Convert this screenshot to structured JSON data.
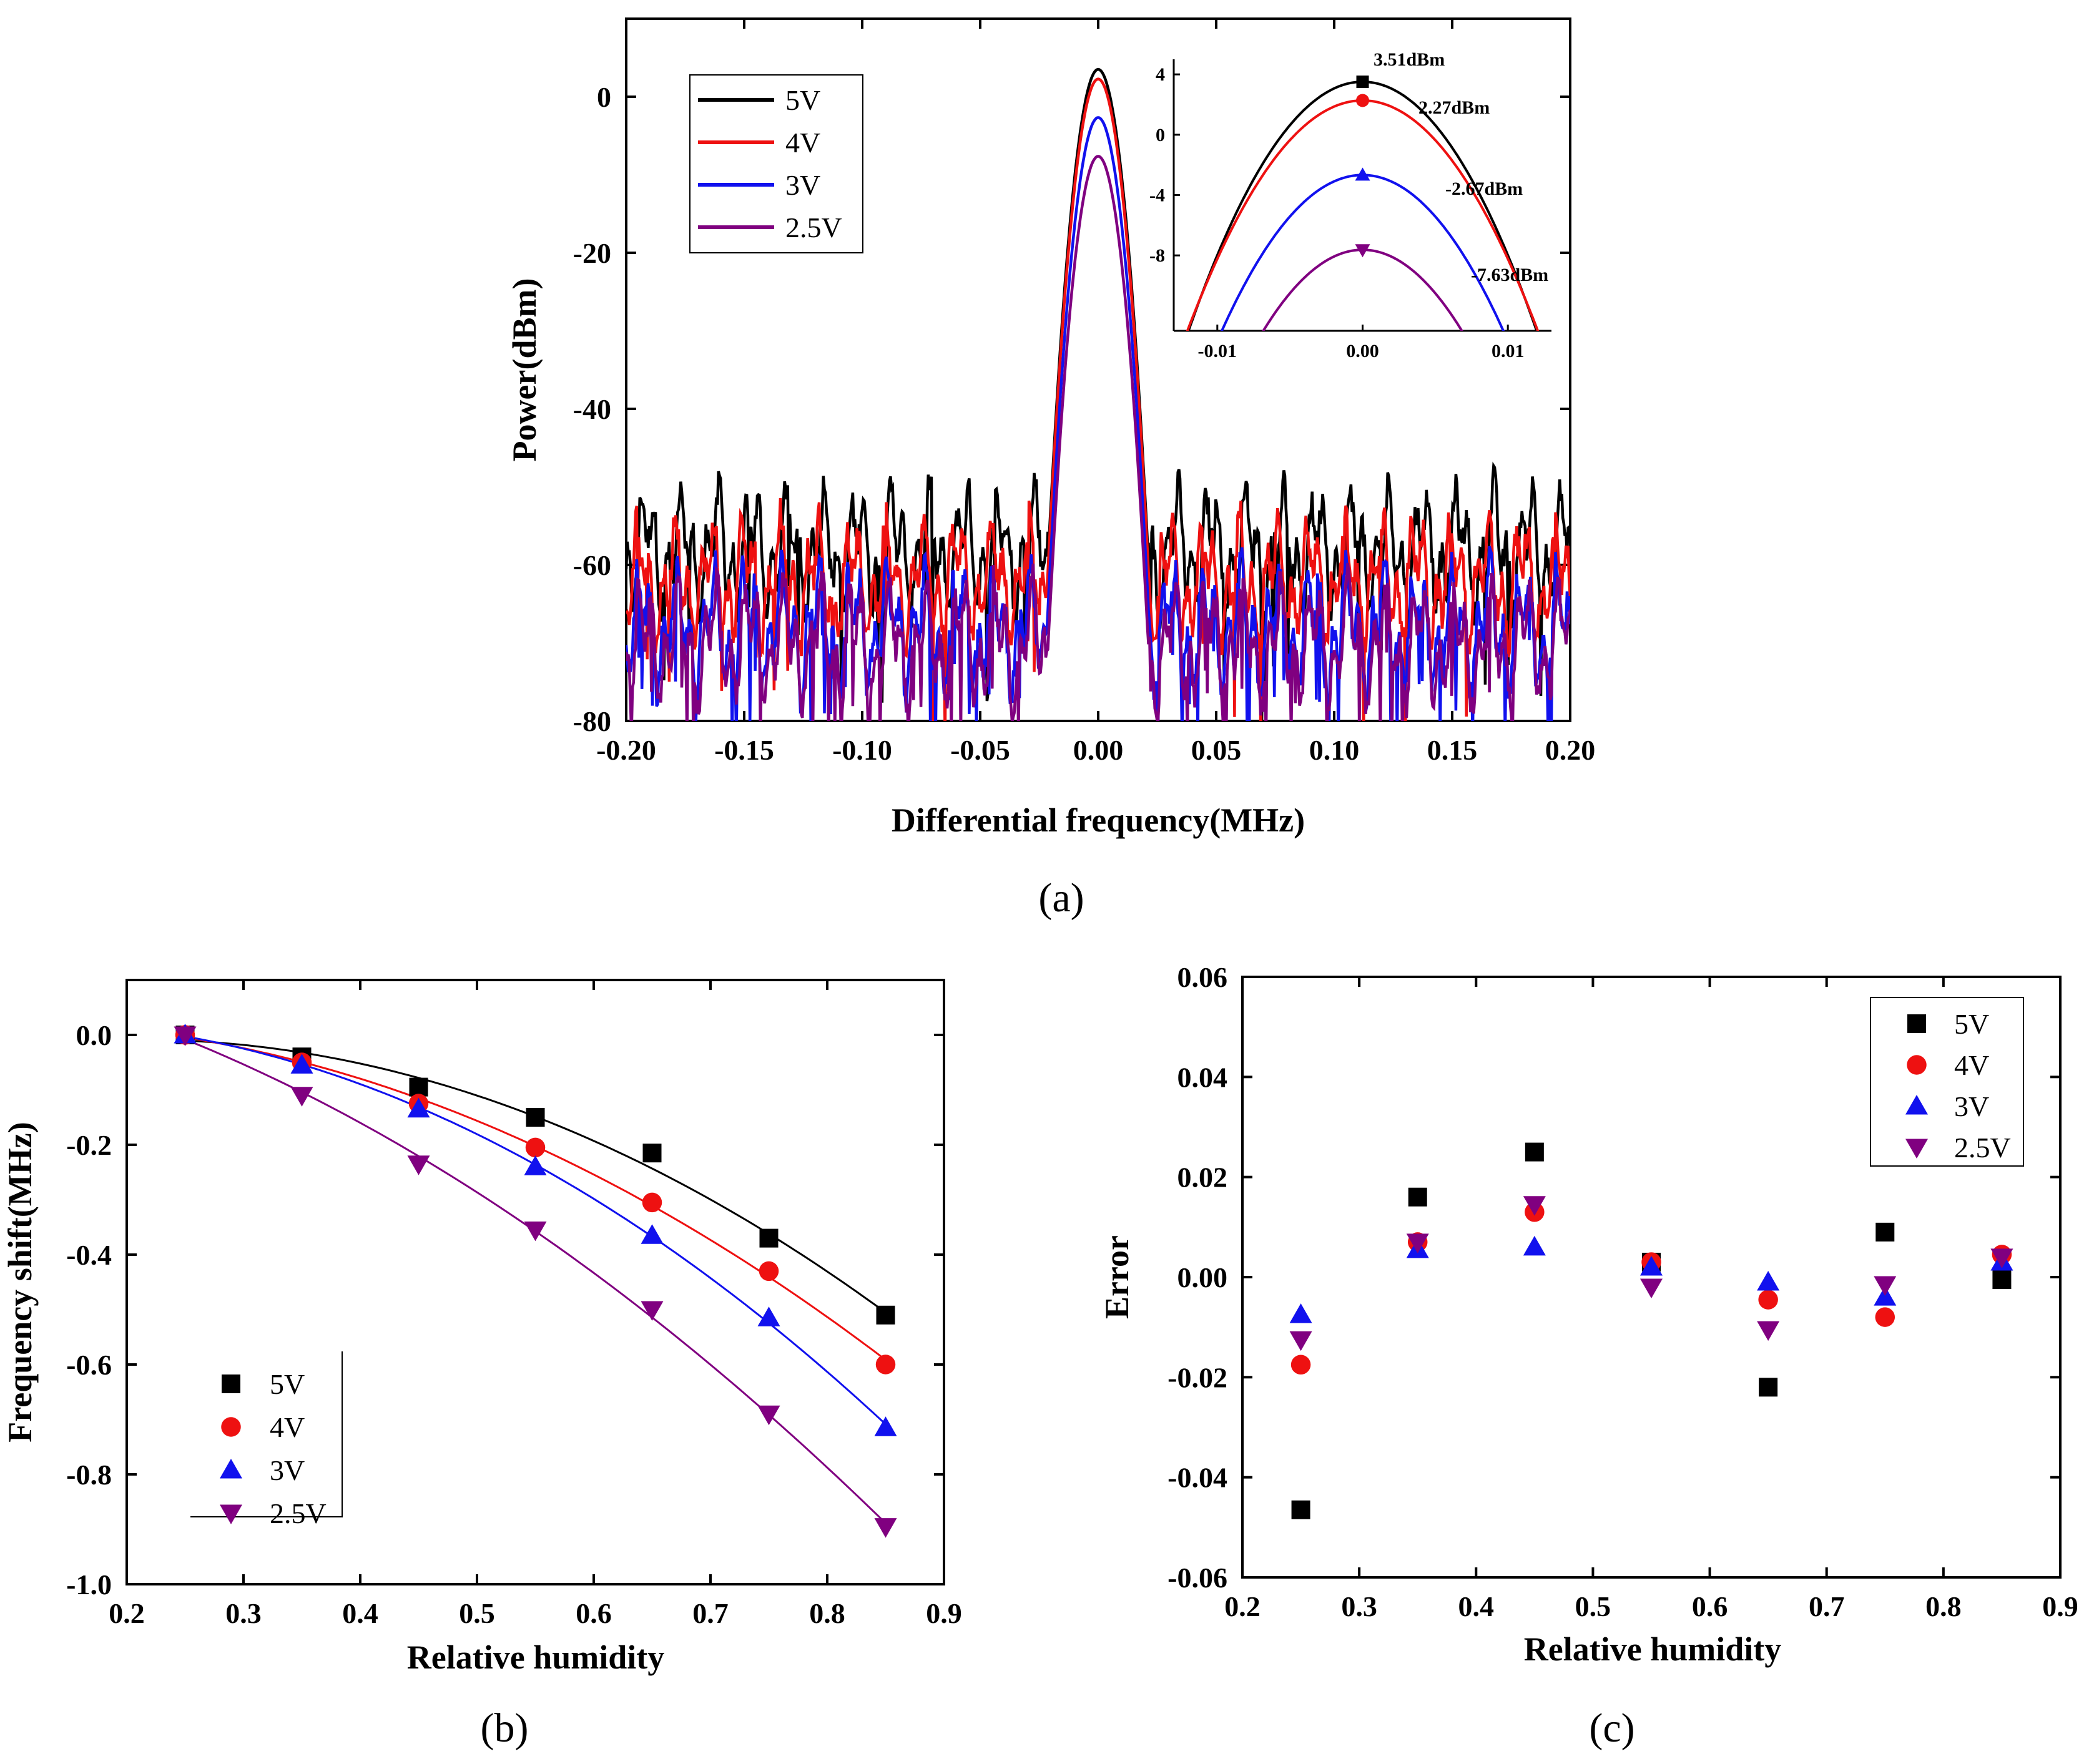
{
  "chart_data": [
    {
      "id": "a",
      "panel_label": "(a)",
      "type": "line",
      "xlabel": "Differential frequency(MHz)",
      "ylabel": "Power(dBm)",
      "xlim": [
        -0.2,
        0.2
      ],
      "ylim": [
        -80,
        10
      ],
      "xticks": [
        "-0.20",
        "-0.15",
        "-0.10",
        "-0.05",
        "0.00",
        "0.05",
        "0.10",
        "0.15",
        "0.20"
      ],
      "yticks": [
        "0",
        "-20",
        "-40",
        "-60",
        "-80"
      ],
      "legend": {
        "position": "top-left"
      },
      "series": [
        {
          "name": "5V",
          "color": "#000000",
          "peak": 3.51,
          "floor": -58
        },
        {
          "name": "4V",
          "color": "#ee1111",
          "peak": 2.27,
          "floor": -62
        },
        {
          "name": "3V",
          "color": "#1111ee",
          "peak": -2.67,
          "floor": -68
        },
        {
          "name": "2.5V",
          "color": "#800080",
          "peak": -7.63,
          "floor": -70
        }
      ],
      "inset": {
        "xlim": [
          -0.013,
          0.013
        ],
        "ylim": [
          -13,
          5
        ],
        "xticks": [
          "-0.01",
          "0.00",
          "0.01"
        ],
        "yticks": [
          "4",
          "0",
          "-4",
          "-8"
        ],
        "annotations": [
          "3.51dBm",
          "2.27dBm",
          "-2.67dBm",
          "-7.63dBm"
        ],
        "peak_markers": [
          "square",
          "circle",
          "triangle-up",
          "triangle-down"
        ]
      }
    },
    {
      "id": "b",
      "panel_label": "(b)",
      "type": "scatter",
      "xlabel": "Relative humidity",
      "ylabel": "Frequency shift(MHz)",
      "xlim": [
        0.2,
        0.9
      ],
      "ylim": [
        -1.0,
        0.1
      ],
      "xticks": [
        "0.2",
        "0.3",
        "0.4",
        "0.5",
        "0.6",
        "0.7",
        "0.8",
        "0.9"
      ],
      "yticks": [
        "0.0",
        "-0.2",
        "-0.4",
        "-0.6",
        "-0.8",
        "-1.0"
      ],
      "legend": {
        "position": "bottom-left"
      },
      "x": [
        0.25,
        0.35,
        0.45,
        0.55,
        0.65,
        0.75,
        0.85
      ],
      "fit_lines": true,
      "series": [
        {
          "name": "5V",
          "marker": "square",
          "color": "#000000",
          "values": [
            0,
            -0.04,
            -0.095,
            -0.15,
            -0.215,
            -0.37,
            -0.51
          ]
        },
        {
          "name": "4V",
          "marker": "circle",
          "color": "#ee1111",
          "values": [
            0,
            -0.05,
            -0.125,
            -0.205,
            -0.305,
            -0.43,
            -0.6
          ]
        },
        {
          "name": "3V",
          "marker": "triangle-up",
          "color": "#1111ee",
          "values": [
            0,
            -0.055,
            -0.135,
            -0.24,
            -0.365,
            -0.515,
            -0.715
          ]
        },
        {
          "name": "2.5V",
          "marker": "triangle-down",
          "color": "#800080",
          "values": [
            0,
            -0.11,
            -0.235,
            -0.355,
            -0.5,
            -0.69,
            -0.895
          ]
        }
      ]
    },
    {
      "id": "c",
      "panel_label": "(c)",
      "type": "scatter",
      "xlabel": "Relative humidity",
      "ylabel": "Error",
      "xlim": [
        0.2,
        0.9
      ],
      "ylim": [
        -0.06,
        0.06
      ],
      "xticks": [
        "0.2",
        "0.3",
        "0.4",
        "0.5",
        "0.6",
        "0.7",
        "0.8",
        "0.9"
      ],
      "yticks": [
        "0.06",
        "0.04",
        "0.02",
        "0.00",
        "-0.02",
        "-0.04",
        "-0.06"
      ],
      "legend": {
        "position": "top-right"
      },
      "x": [
        0.25,
        0.35,
        0.45,
        0.55,
        0.65,
        0.75,
        0.85
      ],
      "series": [
        {
          "name": "5V",
          "marker": "square",
          "color": "#000000",
          "values": [
            -0.0465,
            0.016,
            0.025,
            0.003,
            -0.022,
            0.009,
            -0.0005
          ]
        },
        {
          "name": "4V",
          "marker": "circle",
          "color": "#ee1111",
          "values": [
            -0.0175,
            0.007,
            0.013,
            0.003,
            -0.0045,
            -0.008,
            0.0045
          ]
        },
        {
          "name": "3V",
          "marker": "triangle-up",
          "color": "#1111ee",
          "values": [
            -0.0075,
            0.0055,
            0.006,
            0.002,
            -0.001,
            -0.004,
            0.003
          ]
        },
        {
          "name": "2.5V",
          "marker": "triangle-down",
          "color": "#800080",
          "values": [
            -0.0125,
            0.007,
            0.0145,
            -0.002,
            -0.0105,
            -0.0015,
            0.004
          ]
        }
      ]
    }
  ]
}
